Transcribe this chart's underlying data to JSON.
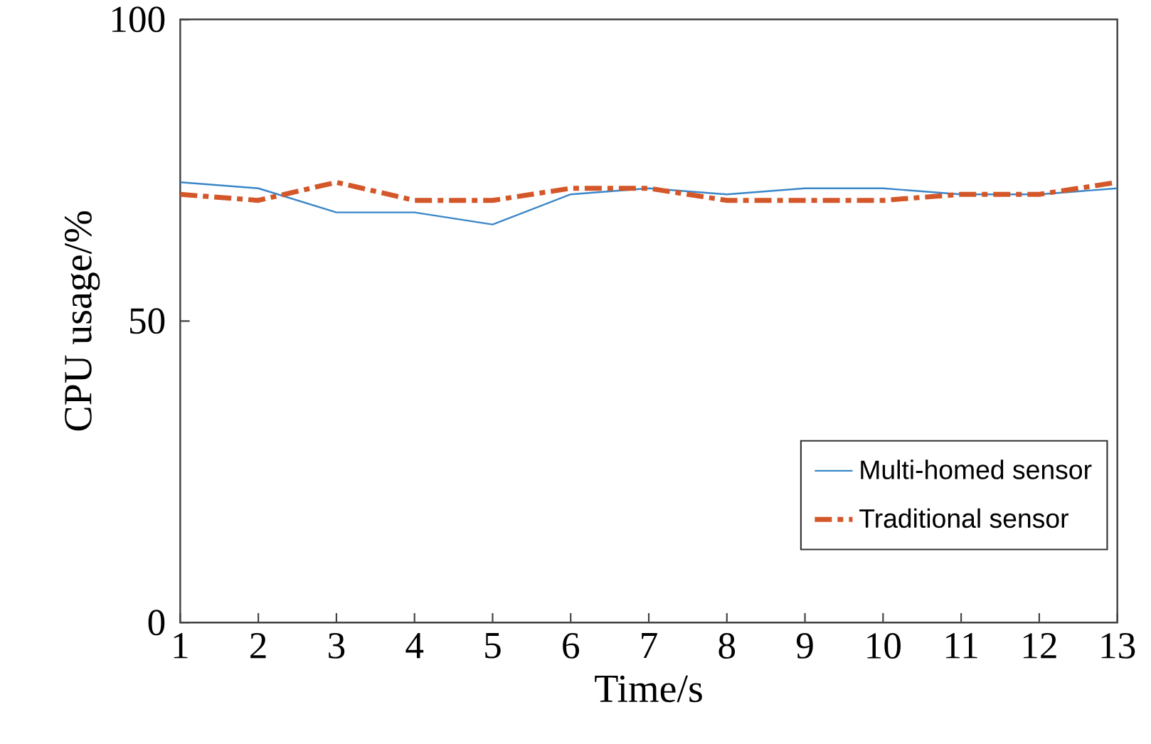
{
  "chart_data": {
    "type": "line",
    "xlabel": "Time/s",
    "ylabel": "CPU usage/%",
    "x": [
      1,
      2,
      3,
      4,
      5,
      6,
      7,
      8,
      9,
      10,
      11,
      12,
      13
    ],
    "xlim": [
      1,
      13
    ],
    "xticks": [
      1,
      2,
      3,
      4,
      5,
      6,
      7,
      8,
      9,
      10,
      11,
      12,
      13
    ],
    "ylim": [
      0,
      100
    ],
    "yticks": [
      0,
      50,
      100
    ],
    "legend": "bottom right",
    "grid": false,
    "series": [
      {
        "name": "Multi-homed sensor",
        "color": "#3a86c8",
        "line_style": "solid",
        "values": [
          73,
          72,
          68,
          68,
          66,
          71,
          72,
          71,
          72,
          72,
          71,
          71,
          72
        ]
      },
      {
        "name": "Traditional sensor",
        "color": "#d4572a",
        "line_style": "dashed",
        "values": [
          71,
          70,
          73,
          70,
          70,
          72,
          72,
          70,
          70,
          70,
          71,
          71,
          73
        ]
      }
    ]
  }
}
